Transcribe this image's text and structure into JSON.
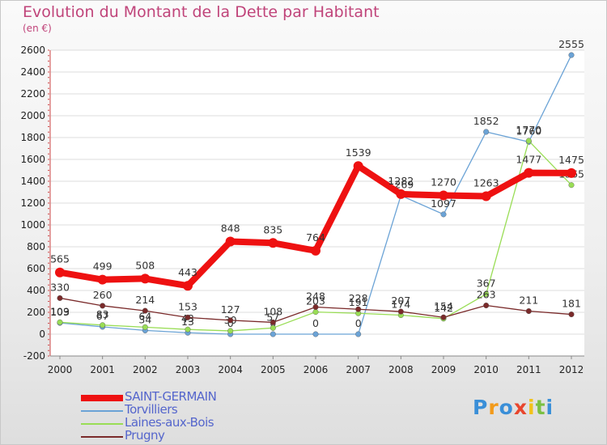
{
  "chart_data": {
    "type": "line",
    "title": "Evolution du Montant de la Dette par Habitant",
    "subtitle": "(en €)",
    "xlabel": "",
    "ylabel": "",
    "categories": [
      "2000",
      "2001",
      "2002",
      "2003",
      "2004",
      "2005",
      "2006",
      "2007",
      "2008",
      "2009",
      "2010",
      "2011",
      "2012"
    ],
    "ylim": [
      -200,
      2600
    ],
    "yticks": [
      -200,
      0,
      200,
      400,
      600,
      800,
      1000,
      1200,
      1400,
      1600,
      1800,
      2000,
      2200,
      2400,
      2600
    ],
    "grid": "horizontal",
    "series": [
      {
        "name": "SAINT-GERMAIN",
        "color": "#ee1111",
        "emphasis": true,
        "values": [
          565,
          499,
          508,
          443,
          848,
          835,
          764,
          1539,
          1282,
          1270,
          1263,
          1477,
          1475
        ]
      },
      {
        "name": "Torvilliers",
        "color": "#6ba3d6",
        "values": [
          103,
          67,
          34,
          13,
          0,
          0,
          0,
          0,
          1269,
          1097,
          1852,
          1760,
          2555
        ]
      },
      {
        "name": "Laines-aux-Bois",
        "color": "#99dd55",
        "values": [
          109,
          83,
          64,
          43,
          30,
          57,
          203,
          191,
          174,
          142,
          367,
          1770,
          1365
        ]
      },
      {
        "name": "Prugny",
        "color": "#7a2a2a",
        "values": [
          330,
          260,
          214,
          153,
          127,
          108,
          248,
          228,
          207,
          154,
          263,
          211,
          181
        ]
      }
    ]
  },
  "logo": {
    "letters": [
      "P",
      "r",
      "o",
      "x",
      "i",
      "t",
      "i"
    ],
    "colors": [
      "#3a8fd8",
      "#f29a1a",
      "#3a8fd8",
      "#e8462e",
      "#f2c21a",
      "#7bc043",
      "#3a8fd8"
    ]
  }
}
